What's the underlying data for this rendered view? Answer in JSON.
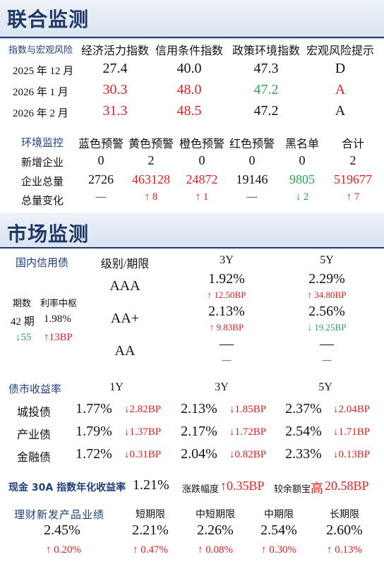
{
  "joint": {
    "title": "联合监测",
    "table1": {
      "corner": "指数与宏观风险",
      "headers": [
        "经济活力指数",
        "信用条件指数",
        "政策环境指数",
        "宏观风险提示"
      ],
      "rows": [
        {
          "label": "2025 年 12 月",
          "v": [
            "27.4",
            "40.0",
            "47.3",
            "D"
          ],
          "colors": [
            "#111111",
            "#111111",
            "#111111",
            "#111111"
          ]
        },
        {
          "label": "2026 年 1 月",
          "v": [
            "30.3",
            "48.0",
            "47.2",
            "A"
          ],
          "colors": [
            "#e02020",
            "#e02020",
            "#2e9e57",
            "#e02020"
          ]
        },
        {
          "label": "2026 年 2 月",
          "v": [
            "31.3",
            "48.5",
            "47.2",
            "A"
          ],
          "colors": [
            "#e02020",
            "#e02020",
            "#111111",
            "#111111"
          ]
        }
      ]
    },
    "table2": {
      "corner": "环境监控",
      "headers": [
        "蓝色预警",
        "黄色预警",
        "橙色预警",
        "红色预警",
        "黑名单",
        "合计"
      ],
      "rows": [
        {
          "label": "新增企业",
          "v": [
            "0",
            "2",
            "0",
            "0",
            "0",
            "2"
          ],
          "colors": [
            "#111111",
            "#111111",
            "#111111",
            "#111111",
            "#111111",
            "#111111"
          ]
        },
        {
          "label": "企业总量",
          "v": [
            "2726",
            "463128",
            "24872",
            "19146",
            "9805",
            "519677"
          ],
          "colors": [
            "#111111",
            "#e02020",
            "#e02020",
            "#111111",
            "#2e9e57",
            "#e02020"
          ]
        },
        {
          "label": "总量变化",
          "v": [
            "—",
            "↑ 8",
            "↑ 1",
            "—",
            "↓ 2",
            "↑ 7"
          ],
          "colors": [
            "#111111",
            "#e02020",
            "#e02020",
            "#111111",
            "#2e9e57",
            "#e02020"
          ]
        }
      ]
    }
  },
  "market": {
    "title": "市场监测",
    "domestic": {
      "label": "国内信用债",
      "grade_header": "级别/期限",
      "col_3y": "3Y",
      "col_5y": "5Y",
      "periods_label": "期数",
      "rate_label": "利率中枢",
      "periods_value": "42 期",
      "rate_value": "1.98%",
      "periods_change": "↓55",
      "rate_change": "↑13BP",
      "rows": [
        {
          "grade": "AAA",
          "y3": "1.92%",
          "y3c": "↑ 12.50BP",
          "y3cc": "#e02020",
          "y5": "2.29%",
          "y5c": "↑ 34.80BP",
          "y5cc": "#e02020"
        },
        {
          "grade": "AA+",
          "y3": "2.13%",
          "y3c": "↑ 9.83BP",
          "y3cc": "#e02020",
          "y5": "2.56%",
          "y5c": "↓ 19.25BP",
          "y5cc": "#2e9e57"
        },
        {
          "grade": "AA",
          "y3": "—",
          "y3c": "—",
          "y3cc": "#111111",
          "y5": "—",
          "y5c": "—",
          "y5cc": "#111111"
        }
      ]
    },
    "yields": {
      "label": "债市收益率",
      "cols": [
        "1Y",
        "3Y",
        "5Y"
      ],
      "rows": [
        {
          "name": "城投债",
          "v": [
            "1.77%",
            "2.13%",
            "2.37%"
          ],
          "c": [
            "↓2.82BP",
            "↓1.85BP",
            "↓2.04BP"
          ]
        },
        {
          "name": "产业债",
          "v": [
            "1.79%",
            "2.17%",
            "2.54%"
          ],
          "c": [
            "↓1.37BP",
            "↓1.72BP",
            "↓1.71BP"
          ]
        },
        {
          "name": "金融债",
          "v": [
            "1.72%",
            "2.04%",
            "2.33%"
          ],
          "c": [
            "↓0.31BP",
            "↓0.82BP",
            "↓0.13BP"
          ]
        }
      ]
    },
    "cash": {
      "label": "现金 30A 指数年化收益率",
      "value": "1.21%",
      "change_label": "涨跌幅度",
      "change_value": "↑0.35BP",
      "vs_label": "较余额宝",
      "vs_word": "高",
      "vs_value": "20.58BP"
    },
    "wealth": {
      "label": "理财新发产品业绩",
      "overall": "2.45%",
      "overall_change": "↑ 0.20%",
      "cols": [
        {
          "name": "短期限",
          "value": "2.21%",
          "change": "↑ 0.47%"
        },
        {
          "name": "中短期限",
          "value": "2.26%",
          "change": "↑ 0.08%"
        },
        {
          "name": "中期限",
          "value": "2.54%",
          "change": "↑ 0.30%"
        },
        {
          "name": "长期限",
          "value": "2.60%",
          "change": "↑ 0.13%"
        }
      ]
    }
  }
}
